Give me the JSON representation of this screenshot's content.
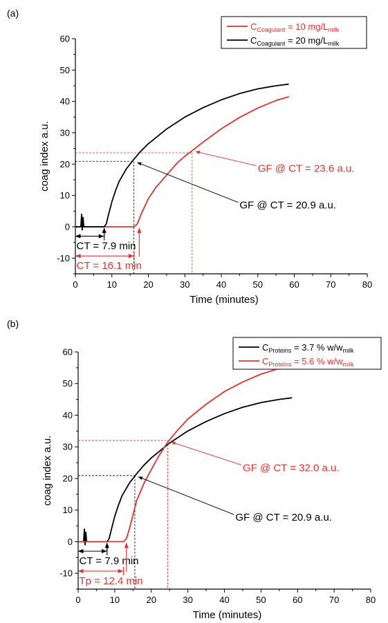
{
  "chart_data": [
    {
      "panel_label": "(a)",
      "type": "line",
      "xlabel": "Time (minutes)",
      "ylabel": "coag index a.u.",
      "xlim": [
        0,
        80
      ],
      "ylim": [
        -15,
        60
      ],
      "xticks": [
        "0",
        "10",
        "20",
        "30",
        "40",
        "50",
        "60",
        "70",
        "80"
      ],
      "yticks": [
        "-10",
        "0",
        "10",
        "20",
        "30",
        "40",
        "50",
        "60"
      ],
      "grid": false,
      "legend_position": "top-right",
      "series": [
        {
          "name": "C_Coagulant = 10 mg/L_milk",
          "legend_main": "C",
          "legend_sub": "Coagulant",
          "legend_mid": " = 10 mg/L",
          "legend_sub2": "milk",
          "color": "#e8302c",
          "x": [
            0,
            2,
            5,
            10,
            14,
            16.1,
            17,
            18,
            20,
            22,
            25,
            28,
            30,
            32,
            35,
            40,
            45,
            50,
            55,
            58.5
          ],
          "y": [
            0,
            0,
            0,
            0,
            0,
            0,
            1,
            4,
            9,
            12.5,
            16.5,
            20.5,
            22.5,
            24.3,
            27,
            31.3,
            34.9,
            37.9,
            40.3,
            41.5
          ]
        },
        {
          "name": "C_Coagulant = 20 mg/L_milk",
          "legend_main": "C",
          "legend_sub": "Coagulant",
          "legend_mid": " = 20 mg/L",
          "legend_sub2": "milk",
          "color": "#000000",
          "x": [
            0,
            1.5,
            1.7,
            1.9,
            2.1,
            2.3,
            2.6,
            5,
            7.9,
            8.5,
            9,
            10,
            11,
            12,
            14,
            16,
            18,
            20,
            25,
            30,
            35,
            40,
            45,
            50,
            55,
            58.5
          ],
          "y": [
            0,
            0,
            4,
            -1,
            3,
            0,
            0,
            0,
            0,
            1,
            3.5,
            8,
            11.5,
            14.5,
            18.5,
            21.5,
            24.2,
            26.5,
            31.2,
            35,
            38,
            40.5,
            42.5,
            44,
            45,
            45.5
          ]
        }
      ],
      "guides": [
        {
          "color": "#000000",
          "x": 16,
          "y": 20.9
        },
        {
          "color": "#e8302c",
          "x": 32,
          "y": 23.6
        }
      ],
      "annotations": [
        {
          "text": "GF @ CT = 23.6 a.u.",
          "color": "#e8302c",
          "x": 50,
          "y": 17.5,
          "arrow_to": [
            33,
            24
          ]
        },
        {
          "text": "GF @ CT = 20.9 a.u.",
          "color": "#000000",
          "x": 45,
          "y": 5.8,
          "arrow_to": [
            17,
            20.5
          ]
        }
      ],
      "brackets": [
        {
          "text": "CT = 7.9 min",
          "color": "#000000",
          "x0": 0.1,
          "x1": 7.9,
          "y": -3,
          "up_arrow_x": 7.9
        },
        {
          "text": "CT = 16.1 min",
          "color": "#e8302c",
          "x0": 0.1,
          "x1": 16.1,
          "y": -9.3,
          "up_arrow_x": 17.5
        }
      ]
    },
    {
      "panel_label": "(b)",
      "type": "line",
      "xlabel": "Time (minutes)",
      "ylabel": "coag index a.u.",
      "xlim": [
        0,
        80
      ],
      "ylim": [
        -15,
        60
      ],
      "xticks": [
        "0",
        "10",
        "20",
        "30",
        "40",
        "50",
        "60",
        "70",
        "80"
      ],
      "yticks": [
        "-10",
        "0",
        "10",
        "20",
        "30",
        "40",
        "50",
        "60"
      ],
      "grid": false,
      "legend_position": "top-right",
      "series": [
        {
          "name": "C_Proteins = 3.7 % w/w_milk",
          "legend_main": "C",
          "legend_sub": "Proteins",
          "legend_mid": " = 3.7 % w/w",
          "legend_sub2": "milk",
          "color": "#000000",
          "x": [
            0,
            1.5,
            1.7,
            1.9,
            2.1,
            2.3,
            2.6,
            5,
            7.9,
            8.5,
            9,
            10,
            11,
            12,
            14,
            16,
            18,
            20,
            25,
            30,
            35,
            40,
            45,
            50,
            55,
            58.5
          ],
          "y": [
            0,
            0,
            4,
            -1,
            3,
            0,
            0,
            0,
            0,
            1,
            3.5,
            8,
            11.5,
            14.5,
            18.5,
            21.5,
            24.2,
            26.5,
            31.2,
            35,
            38,
            40.5,
            42.5,
            44,
            45,
            45.5
          ]
        },
        {
          "name": "C_Proteins = 5.6 % w/w_milk",
          "legend_main": "C",
          "legend_sub": "Proteins",
          "legend_mid": " = 5.6 % w/w",
          "legend_sub2": "milk",
          "color": "#e8302c",
          "x": [
            0,
            3,
            6,
            10,
            12.4,
            13.2,
            14,
            15,
            16,
            18,
            20,
            22,
            24.5,
            27,
            30,
            35,
            40,
            45,
            50,
            55,
            58.5
          ],
          "y": [
            0,
            0,
            0,
            0,
            0,
            1,
            4,
            8.5,
            13,
            18.5,
            22.8,
            27,
            31.5,
            35,
            38.8,
            43.5,
            47.5,
            50.5,
            53,
            54.8,
            55.6
          ]
        }
      ],
      "guides": [
        {
          "color": "#000000",
          "x": 15.5,
          "y": 20.9
        },
        {
          "color": "#e8302c",
          "x": 24.5,
          "y": 32.0
        }
      ],
      "annotations": [
        {
          "text": "GF @ CT  = 32.0 a.u.",
          "color": "#e8302c",
          "x": 45,
          "y": 22.3,
          "arrow_to": [
            25.5,
            31.5
          ]
        },
        {
          "text": "GF @ CT  = 20.9 a.u.",
          "color": "#000000",
          "x": 43,
          "y": 6.6,
          "arrow_to": [
            16.5,
            20.5
          ]
        }
      ],
      "brackets": [
        {
          "text": "CT = 7.9 min",
          "color": "#000000",
          "x0": 0.1,
          "x1": 7.9,
          "y": -3,
          "up_arrow_x": 7.9
        },
        {
          "text": "Tp = 12.4 min",
          "color": "#e8302c",
          "x0": 0.1,
          "x1": 12.4,
          "y": -9.3,
          "up_arrow_x": 13.2
        }
      ]
    }
  ]
}
